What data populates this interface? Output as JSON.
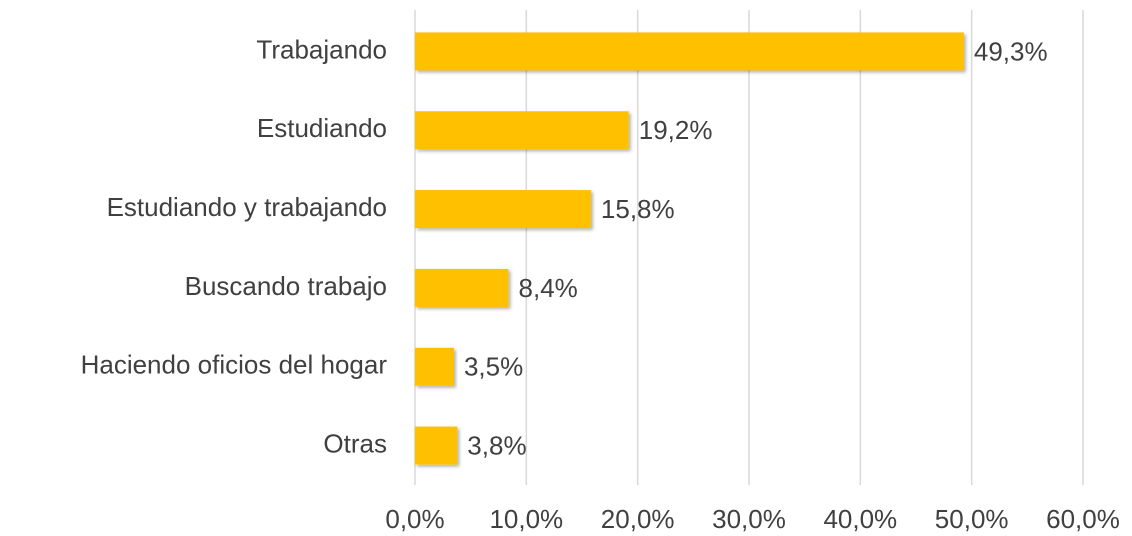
{
  "chart_data": {
    "type": "barh",
    "categories": [
      "Trabajando",
      "Estudiando",
      "Estudiando y trabajando",
      "Buscando trabajo",
      "Haciendo oficios del hogar",
      "Otras"
    ],
    "values": [
      49.3,
      19.2,
      15.8,
      8.4,
      3.5,
      3.8
    ],
    "value_labels": [
      "49,3%",
      "19,2%",
      "15,8%",
      "8,4%",
      "3,5%",
      "3,8%"
    ],
    "color": "#ffc000",
    "xlim": [
      0,
      60
    ],
    "xticks": [
      {
        "value": 0,
        "label": "0,0%"
      },
      {
        "value": 10,
        "label": "10,0%"
      },
      {
        "value": 20,
        "label": "20,0%"
      },
      {
        "value": 30,
        "label": "30,0%"
      },
      {
        "value": 40,
        "label": "40,0%"
      },
      {
        "value": 50,
        "label": "50,0%"
      },
      {
        "value": 60,
        "label": "60,0%"
      }
    ],
    "grid": true
  }
}
